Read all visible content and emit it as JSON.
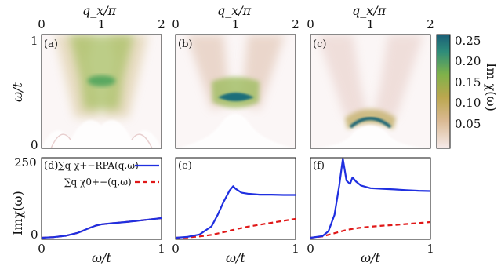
{
  "colors": {
    "rpa": "#1f2fe0",
    "bare": "#e01818",
    "cmap_low": "#f6eaea",
    "cmap_mid1": "#c9b05a",
    "cmap_mid2": "#7fb24a",
    "cmap_high": "#1a5f78"
  },
  "top_axis": {
    "label": "q_x/π",
    "ticks": [
      "0",
      "1",
      "2"
    ]
  },
  "top_y_axis": {
    "label": "ω/t",
    "ticks": [
      "0",
      "1"
    ]
  },
  "colorbar": {
    "label": "Im χ(ω)",
    "ticks": [
      "0.25",
      "0.20",
      "0.15",
      "0.10",
      "0.05"
    ]
  },
  "bottom_y_axis": {
    "label": "Imχ(ω)",
    "ticks": [
      "250",
      "0"
    ]
  },
  "bottom_x_axis": {
    "label": "ω/t",
    "ticks": [
      "0",
      "1"
    ]
  },
  "legend": {
    "rpa": "∑q χ+−RPA(q,ω)",
    "bare": "∑q χ0+−(q,ω)"
  },
  "chart_data": [
    {
      "type": "heatmap",
      "panel": "(a)",
      "xlabel": "q_x/π",
      "ylabel": "ω/t",
      "xlim": [
        0,
        2
      ],
      "ylim": [
        0,
        1.05
      ],
      "zlim": [
        0,
        0.28
      ],
      "features": {
        "dispersion_bottom": 0.35,
        "dispersion_top": 1.05,
        "peak_q": 1.0,
        "peak_omega": 0.62,
        "peak_value": 0.16
      }
    },
    {
      "type": "heatmap",
      "panel": "(b)",
      "xlabel": "q_x/π",
      "ylabel": "ω/t",
      "xlim": [
        0,
        2
      ],
      "ylim": [
        0,
        1.05
      ],
      "zlim": [
        0,
        0.28
      ],
      "features": {
        "peak_q": 1.0,
        "peak_omega": 0.48,
        "peak_value": 0.26
      }
    },
    {
      "type": "heatmap",
      "panel": "(c)",
      "xlabel": "q_x/π",
      "ylabel": "ω/t",
      "xlim": [
        0,
        2
      ],
      "ylim": [
        0,
        1.05
      ],
      "zlim": [
        0,
        0.28
      ],
      "features": {
        "peak_q": 1.0,
        "peak_omega": 0.3,
        "peak_value": 0.28
      }
    },
    {
      "type": "line",
      "panel": "(d)",
      "xlabel": "ω/t",
      "ylabel": "Imχ(ω)",
      "xlim": [
        0,
        1
      ],
      "ylim": [
        0,
        250
      ],
      "series": [
        {
          "name": "∑q χ+−RPA(q,ω)",
          "x": [
            0,
            0.1,
            0.2,
            0.3,
            0.35,
            0.4,
            0.45,
            0.5,
            0.6,
            0.7,
            0.8,
            0.9,
            1.0
          ],
          "values": [
            0,
            2,
            6,
            15,
            22,
            30,
            37,
            41,
            45,
            48,
            52,
            56,
            60
          ]
        },
        {
          "name": "∑q χ0+−(q,ω)",
          "x": [
            0,
            0.1,
            0.2,
            0.3,
            0.35,
            0.4,
            0.45,
            0.5,
            0.6,
            0.7,
            0.8,
            0.9,
            1.0
          ],
          "values": [
            0,
            2,
            6,
            15,
            22,
            30,
            37,
            41,
            45,
            48,
            52,
            56,
            60
          ]
        }
      ]
    },
    {
      "type": "line",
      "panel": "(e)",
      "xlabel": "ω/t",
      "ylim": [
        0,
        250
      ],
      "xlim": [
        0,
        1
      ],
      "series": [
        {
          "name": "∑q χ+−RPA(q,ω)",
          "x": [
            0,
            0.1,
            0.2,
            0.3,
            0.35,
            0.4,
            0.45,
            0.48,
            0.5,
            0.55,
            0.6,
            0.7,
            0.8,
            0.9,
            1.0
          ],
          "values": [
            0,
            3,
            10,
            35,
            70,
            110,
            145,
            158,
            150,
            138,
            135,
            132,
            132,
            131,
            131
          ]
        },
        {
          "name": "∑q χ0+−(q,ω)",
          "x": [
            0,
            0.1,
            0.2,
            0.3,
            0.4,
            0.5,
            0.6,
            0.7,
            0.8,
            0.9,
            1.0
          ],
          "values": [
            0,
            1,
            4,
            9,
            17,
            26,
            34,
            40,
            46,
            52,
            58
          ]
        }
      ]
    },
    {
      "type": "line",
      "panel": "(f)",
      "xlabel": "ω/t",
      "ylim": [
        0,
        250
      ],
      "xlim": [
        0,
        1
      ],
      "series": [
        {
          "name": "∑q χ+−RPA(q,ω)",
          "x": [
            0,
            0.1,
            0.15,
            0.2,
            0.24,
            0.27,
            0.3,
            0.33,
            0.35,
            0.38,
            0.42,
            0.5,
            0.6,
            0.7,
            0.8,
            0.9,
            1.0
          ],
          "values": [
            0,
            5,
            20,
            70,
            160,
            242,
            175,
            165,
            185,
            172,
            160,
            152,
            150,
            148,
            146,
            144,
            143
          ]
        },
        {
          "name": "∑q χ0+−(q,ω)",
          "x": [
            0,
            0.1,
            0.2,
            0.3,
            0.4,
            0.5,
            0.6,
            0.7,
            0.8,
            0.9,
            1.0
          ],
          "values": [
            0,
            4,
            14,
            24,
            30,
            34,
            37,
            39,
            42,
            45,
            48
          ]
        }
      ]
    }
  ]
}
